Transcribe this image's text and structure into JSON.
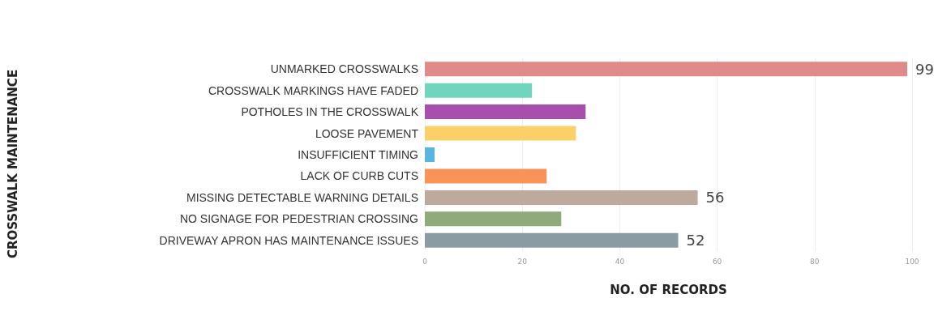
{
  "chart_data": {
    "type": "bar",
    "orientation": "horizontal",
    "annotations": [
      "CROSSWALK MAINTENANCE"
    ],
    "xlabel": "NO. OF RECORDS",
    "categories": [
      "UNMARKED CROSSWALKS",
      "CROSSWALK MARKINGS HAVE FADED",
      "POTHOLES IN THE CROSSWALK",
      "LOOSE PAVEMENT",
      "INSUFFICIENT TIMING",
      "LACK OF CURB CUTS",
      "MISSING DETECTABLE WARNING DETAILS",
      "NO SIGNAGE FOR PEDESTRIAN CROSSING",
      "DRIVEWAY APRON HAS MAINTENANCE ISSUES"
    ],
    "values": [
      99,
      22,
      33,
      31,
      2,
      25,
      56,
      28,
      52
    ],
    "value_labels": [
      "99",
      null,
      null,
      null,
      null,
      null,
      "56",
      null,
      "52"
    ],
    "colors": [
      "#e08a8a",
      "#6fd6bd",
      "#a84fae",
      "#fccf68",
      "#5ab4e0",
      "#f9935a",
      "#bdaa9c",
      "#8fab7c",
      "#8a9ba3"
    ],
    "xlim": [
      0,
      100
    ],
    "xticks": [
      0,
      20,
      40,
      60,
      80,
      100
    ],
    "grid": "x"
  }
}
